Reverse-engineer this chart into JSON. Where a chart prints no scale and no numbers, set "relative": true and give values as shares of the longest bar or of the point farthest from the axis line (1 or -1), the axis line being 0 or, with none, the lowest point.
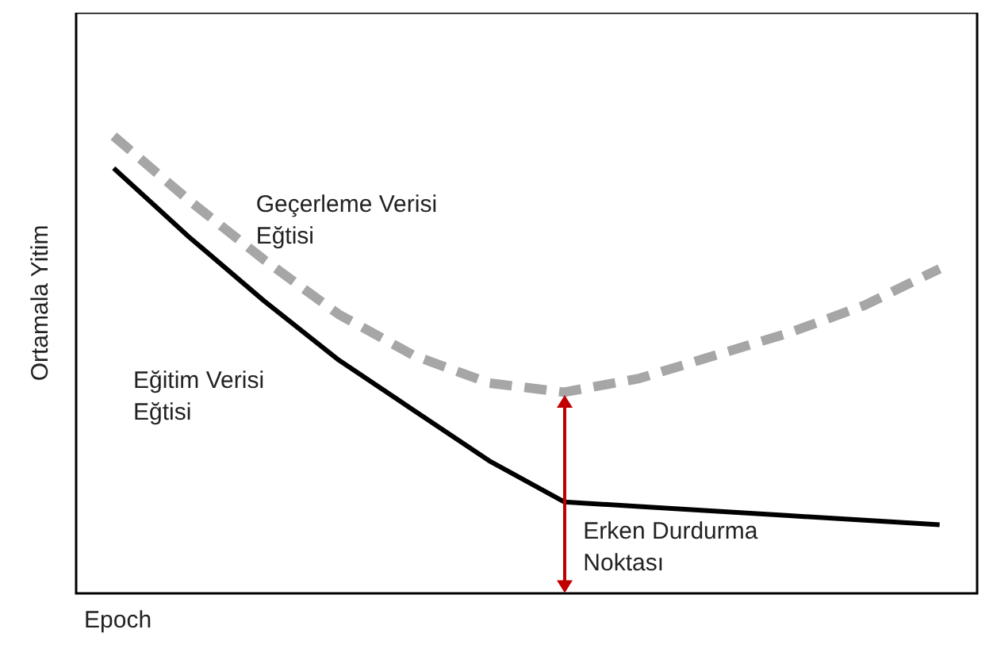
{
  "chart_data": {
    "type": "line",
    "relative": true,
    "xlabel": "Epoch",
    "ylabel": "Ortamala Yitim",
    "categories": [
      null,
      null,
      null,
      null,
      null,
      null,
      null,
      null,
      null,
      null,
      null,
      null
    ],
    "series": [
      {
        "name": "Geçerleme Verisi Eğtisi",
        "color": "#a6a6a6",
        "line_style": "dashed",
        "values": [
          1,
          0.86,
          0.73,
          0.61,
          0.52,
          0.46,
          0.44,
          0.47,
          0.52,
          0.57,
          0.63,
          0.71
        ]
      },
      {
        "name": "Eğitim Verisi Eğtisi",
        "color": "#000000",
        "line_style": "solid",
        "values": [
          0.93,
          0.78,
          0.64,
          0.51,
          0.4,
          0.29,
          0.2,
          0.19,
          0.18,
          0.17,
          0.16,
          0.15
        ]
      }
    ],
    "annotations": [
      "Erken Durdurma Noktası"
    ],
    "marker": "none",
    "legend": false
  }
}
